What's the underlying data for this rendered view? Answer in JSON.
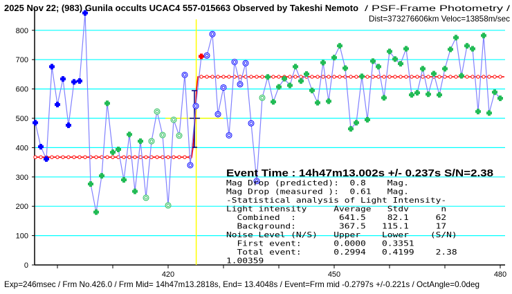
{
  "header": {
    "title": "2025 Nov 22; (983) Gunila occults UCAC4 557-015663 Observed by Takeshi Nemoto",
    "subtitle": "/ PSF-Frame Photometry /",
    "subtitle2": "Dist=373276606km Veloc=13858m/sec"
  },
  "results": {
    "event_time": "Event Time : 14h47m13.002s  +/- 0.237s  S/N=2.38",
    "lines": [
      "Mag Drop (predicted):  0.8    Mag.",
      "Mag Drop (measured ):  0.61   Mag.",
      "-Statistical analysis of Light Intensity-",
      "Light intensity     Average   Stdv      n",
      "  Combined  :        641.5    82.1     62",
      "  Background:        367.5   115.1     17",
      "Noise Level (N/S)   Upper    Lower    (S/N)",
      "  First event:      0.0000   0.3351",
      "  Total event:      0.2994   0.4199    2.38",
      "1.00359"
    ]
  },
  "footer": {
    "text": "Exp=246msec / Frm No.426.0 / Frm Mid= 14h47m13.2818s,  End= 13.4048s / Event=Frm mid -0.2797s +/-0.221s / OctAngle=0.0deg"
  },
  "chart_data": {
    "type": "scatter",
    "title": "2025 Nov 22; (983) Gunila occults UCAC4 557-015663 Observed by Takeshi Nemoto",
    "xlabel": "",
    "ylabel": "",
    "xlim": [
      395.8,
      481
    ],
    "ylim": [
      0,
      850
    ],
    "x_ticks": [
      420,
      450,
      480
    ],
    "y_ticks": [
      0,
      100,
      200,
      300,
      400,
      500,
      600,
      700,
      800
    ],
    "grid": "horizontal",
    "x_start": 396,
    "y": [
      485,
      403,
      361,
      676,
      547,
      634,
      476,
      624,
      627,
      859,
      276,
      180,
      304,
      551,
      384,
      394,
      290,
      445,
      251,
      422,
      229,
      422,
      523,
      443,
      203,
      495,
      441,
      648,
      340,
      542,
      711,
      714,
      787,
      514,
      605,
      442,
      692,
      616,
      688,
      483,
      286,
      570,
      641,
      556,
      607,
      635,
      612,
      676,
      627,
      651,
      595,
      553,
      690,
      558,
      707,
      747,
      671,
      464,
      485,
      643,
      495,
      695,
      676,
      570,
      728,
      702,
      686,
      737,
      580,
      587,
      669,
      582,
      652,
      580,
      669,
      735,
      775,
      645,
      747,
      737,
      523,
      782,
      518,
      589,
      568
    ],
    "markers": [
      {
        "from": 396,
        "to": 405,
        "style": "filled",
        "color": "#0000ff"
      },
      {
        "from": 406,
        "to": 415,
        "style": "filled",
        "color": "#22bb55"
      },
      {
        "from": 416,
        "to": 422,
        "style": "hollow",
        "color": "#22bb55"
      },
      {
        "from": 423,
        "to": 425,
        "style": "hollow",
        "color": "#0000ff"
      },
      {
        "from": 426,
        "to": 426,
        "style": "filled",
        "color": "#ff0000"
      },
      {
        "from": 427,
        "to": 436,
        "style": "hollow",
        "color": "#0000ff"
      },
      {
        "from": 437,
        "to": 437,
        "style": "hollow",
        "color": "#22bb55"
      },
      {
        "from": 438,
        "to": 480,
        "style": "filled",
        "color": "#22bb55"
      }
    ],
    "fit": {
      "background_level": 367.5,
      "event_level": 641.5,
      "background_range": [
        396,
        425
      ],
      "event_range": [
        426,
        480
      ],
      "event_frame": 425.2,
      "event_frame_error": 0.9
    },
    "colors": {
      "line": "#8080ff",
      "grid": "#00ffff",
      "fit": "#ff0000",
      "event_marker": "#ffff00",
      "error_bar": "#000080"
    }
  }
}
